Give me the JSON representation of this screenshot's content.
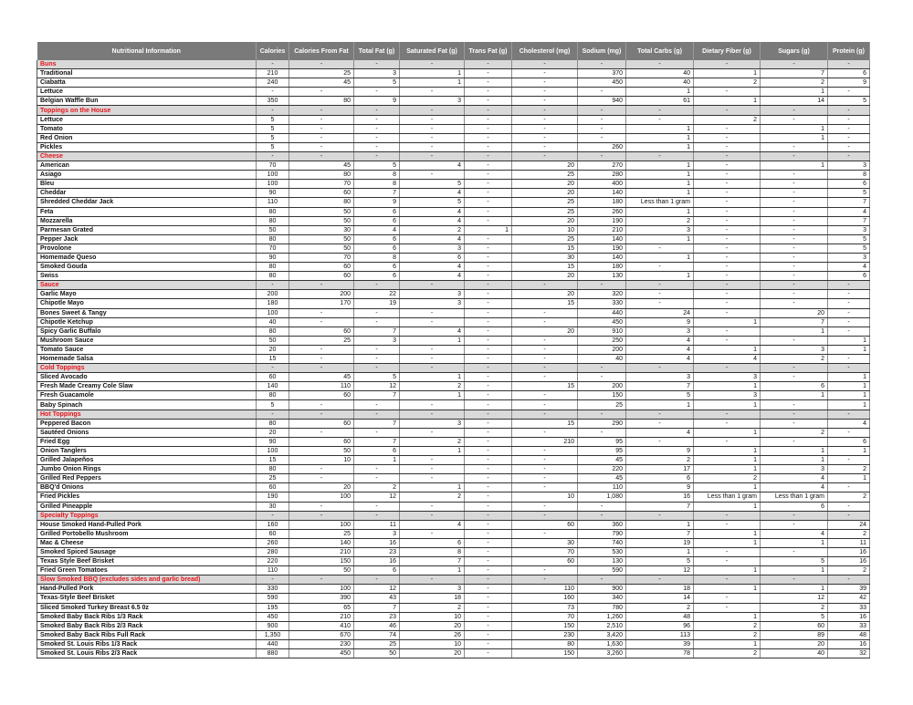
{
  "columns": [
    "Nutritional Information",
    "Calories",
    "Calories From Fat",
    "Total Fat (g)",
    "Saturated Fat (g)",
    "Trans Fat (g)",
    "Cholesterol (mg)",
    "Sodium (mg)",
    "Total Carbs (g)",
    "Dietary Fiber (g)",
    "Sugars (g)",
    "Protein (g)"
  ],
  "colors": {
    "header_bg": "#7a7a7a",
    "section_bg": "#d9d9d9",
    "section_text": "#e8141b"
  },
  "rows": [
    {
      "section": true,
      "cells": [
        "Buns",
        "-",
        "-",
        "-",
        "-",
        "-",
        "-",
        "-",
        "-",
        "-",
        "-",
        "-"
      ]
    },
    {
      "cells": [
        "Traditional",
        "210",
        "25",
        "3",
        "1",
        "-",
        "-",
        "370",
        "40",
        "1",
        "7",
        "6"
      ]
    },
    {
      "cells": [
        "Ciabatta",
        "240",
        "45",
        "5",
        "1",
        "-",
        "-",
        "450",
        "40",
        "2",
        "2",
        "9"
      ]
    },
    {
      "cells": [
        "Lettuce",
        "-",
        "-",
        "-",
        "-",
        "-",
        "-",
        "-",
        "1",
        "-",
        "1",
        "-"
      ]
    },
    {
      "cells": [
        "Belgian Waffle Bun",
        "350",
        "80",
        "9",
        "3",
        "-",
        "-",
        "940",
        "61",
        "1",
        "14",
        "5"
      ]
    },
    {
      "section": true,
      "cells": [
        "Toppings on the House",
        "-",
        "-",
        "-",
        "-",
        "-",
        "-",
        "-",
        "-",
        "-",
        "-",
        "-"
      ]
    },
    {
      "cells": [
        "Lettuce",
        "5",
        "-",
        "-",
        "-",
        "-",
        "-",
        "-",
        "-",
        "2",
        "-",
        "-"
      ]
    },
    {
      "cells": [
        "Tomato",
        "5",
        "-",
        "-",
        "-",
        "-",
        "-",
        "-",
        "1",
        "-",
        "1",
        "-"
      ]
    },
    {
      "cells": [
        "Red Onion",
        "5",
        "-",
        "-",
        "-",
        "-",
        "-",
        "-",
        "1",
        "-",
        "1",
        "-"
      ]
    },
    {
      "cells": [
        "Pickles",
        "5",
        "-",
        "-",
        "-",
        "-",
        "-",
        "260",
        "1",
        "-",
        "-",
        "-"
      ]
    },
    {
      "section": true,
      "cells": [
        "Cheese",
        "-",
        "-",
        "-",
        "-",
        "-",
        "-",
        "-",
        "-",
        "-",
        "-",
        "-"
      ]
    },
    {
      "cells": [
        "American",
        "70",
        "45",
        "5",
        "4",
        "-",
        "20",
        "270",
        "1",
        "-",
        "1",
        "3"
      ]
    },
    {
      "cells": [
        "Asiago",
        "100",
        "80",
        "8",
        "-",
        "-",
        "25",
        "280",
        "1",
        "-",
        "-",
        "8"
      ]
    },
    {
      "cells": [
        "Bleu",
        "100",
        "70",
        "8",
        "5",
        "-",
        "20",
        "400",
        "1",
        "-",
        "-",
        "6"
      ]
    },
    {
      "cells": [
        "Cheddar",
        "90",
        "60",
        "7",
        "4",
        "-",
        "20",
        "140",
        "1",
        "-",
        "-",
        "5"
      ]
    },
    {
      "cells": [
        "Shredded Cheddar Jack",
        "110",
        "80",
        "9",
        "5",
        "-",
        "25",
        "180",
        "Less than 1 gram",
        "-",
        "-",
        "7"
      ]
    },
    {
      "cells": [
        "Feta",
        "80",
        "50",
        "6",
        "4",
        "-",
        "25",
        "260",
        "1",
        "-",
        "-",
        "4"
      ]
    },
    {
      "cells": [
        "Mozzarella",
        "80",
        "50",
        "6",
        "4",
        "-",
        "20",
        "190",
        "2",
        "-",
        "-",
        "7"
      ]
    },
    {
      "cells": [
        "Parmesan Grated",
        "50",
        "30",
        "4",
        "2",
        "1",
        "10",
        "210",
        "3",
        "-",
        "-",
        "3"
      ]
    },
    {
      "cells": [
        "Pepper Jack",
        "80",
        "50",
        "6",
        "4",
        "-",
        "25",
        "140",
        "1",
        "-",
        "-",
        "5"
      ]
    },
    {
      "cells": [
        "Provolone",
        "70",
        "50",
        "6",
        "3",
        "-",
        "15",
        "190",
        "-",
        "-",
        "-",
        "5"
      ]
    },
    {
      "cells": [
        "Homemade Queso",
        "90",
        "70",
        "8",
        "6",
        "-",
        "30",
        "140",
        "1",
        "-",
        "-",
        "3"
      ]
    },
    {
      "cells": [
        "Smoked Gouda",
        "80",
        "60",
        "6",
        "4",
        "-",
        "15",
        "180",
        "-",
        "-",
        "-",
        "4"
      ]
    },
    {
      "cells": [
        "Swiss",
        "80",
        "60",
        "6",
        "4",
        "-",
        "20",
        "130",
        "1",
        "-",
        "-",
        "6"
      ]
    },
    {
      "section": true,
      "cells": [
        "Sauce",
        "-",
        "-",
        "-",
        "-",
        "-",
        "-",
        "-",
        "-",
        "-",
        "-",
        "-"
      ]
    },
    {
      "cells": [
        "Garlic Mayo",
        "200",
        "200",
        "22",
        "3",
        "-",
        "20",
        "320",
        "-",
        "-",
        "-",
        "-"
      ]
    },
    {
      "cells": [
        "Chipotle Mayo",
        "180",
        "170",
        "19",
        "3",
        "-",
        "15",
        "330",
        "-",
        "-",
        "-",
        "-"
      ]
    },
    {
      "cells": [
        "Bones Sweet & Tangy",
        "100",
        "-",
        "-",
        "-",
        "-",
        "-",
        "440",
        "24",
        "-",
        "20",
        "-"
      ]
    },
    {
      "cells": [
        "Chipotle Ketchup",
        "40",
        "-",
        "-",
        "-",
        "-",
        "-",
        "450",
        "9",
        "1",
        "7",
        "-"
      ]
    },
    {
      "cells": [
        "Spicy Garlic Buffalo",
        "80",
        "60",
        "7",
        "4",
        "-",
        "20",
        "910",
        "3",
        "-",
        "1",
        "-"
      ]
    },
    {
      "cells": [
        "Mushroom Sauce",
        "50",
        "25",
        "3",
        "1",
        "-",
        "-",
        "250",
        "4",
        "-",
        "-",
        "1"
      ]
    },
    {
      "cells": [
        "Tomato Sauce",
        "20",
        "-",
        "-",
        "-",
        "-",
        "-",
        "200",
        "4",
        "1",
        "3",
        "1"
      ]
    },
    {
      "cells": [
        "Homemade Salsa",
        "15",
        "-",
        "-",
        "-",
        "-",
        "-",
        "40",
        "4",
        "4",
        "2",
        "-"
      ]
    },
    {
      "section": true,
      "cells": [
        "Cold Toppings",
        "-",
        "-",
        "-",
        "-",
        "-",
        "-",
        "-",
        "-",
        "-",
        "-",
        "-"
      ]
    },
    {
      "cells": [
        "Sliced Avocado",
        "60",
        "45",
        "5",
        "1",
        "-",
        "-",
        "-",
        "3",
        "3",
        "-",
        "1"
      ]
    },
    {
      "cells": [
        "Fresh Made Creamy Cole Slaw",
        "140",
        "110",
        "12",
        "2",
        "-",
        "15",
        "200",
        "7",
        "1",
        "6",
        "1"
      ]
    },
    {
      "cells": [
        "Fresh Guacamole",
        "80",
        "60",
        "7",
        "1",
        "-",
        "-",
        "150",
        "5",
        "3",
        "1",
        "1"
      ]
    },
    {
      "cells": [
        "Baby Spinach",
        "5",
        "-",
        "-",
        "-",
        "-",
        "-",
        "25",
        "1",
        "1",
        "-",
        "1"
      ]
    },
    {
      "section": true,
      "cells": [
        "Hot Toppings",
        "-",
        "-",
        "-",
        "-",
        "-",
        "-",
        "-",
        "-",
        "-",
        "-",
        "-"
      ]
    },
    {
      "cells": [
        "Peppered Bacon",
        "80",
        "60",
        "7",
        "3",
        "-",
        "15",
        "290",
        "-",
        "-",
        "-",
        "4"
      ]
    },
    {
      "cells": [
        "Sautéed Onions",
        "20",
        "-",
        "-",
        "-",
        "-",
        "-",
        "-",
        "4",
        "1",
        "2",
        "-"
      ]
    },
    {
      "cells": [
        "Fried Egg",
        "90",
        "60",
        "7",
        "2",
        "-",
        "210",
        "95",
        "-",
        "-",
        "-",
        "6"
      ]
    },
    {
      "cells": [
        "Onion Tanglers",
        "100",
        "50",
        "6",
        "1",
        "-",
        "-",
        "95",
        "9",
        "1",
        "1",
        "1"
      ]
    },
    {
      "cells": [
        "Grilled Jalapeños",
        "15",
        "10",
        "1",
        "-",
        "-",
        "-",
        "45",
        "2",
        "1",
        "1",
        "-"
      ]
    },
    {
      "cells": [
        "Jumbo Onion Rings",
        "80",
        "-",
        "-",
        "-",
        "-",
        "-",
        "220",
        "17",
        "1",
        "3",
        "2"
      ]
    },
    {
      "cells": [
        "Grilled Red Peppers",
        "25",
        "-",
        "-",
        "-",
        "-",
        "-",
        "45",
        "6",
        "2",
        "4",
        "1"
      ]
    },
    {
      "cells": [
        "BBQ'd Onions",
        "60",
        "20",
        "2",
        "1",
        "-",
        "-",
        "110",
        "9",
        "1",
        "4",
        "-"
      ]
    },
    {
      "cells": [
        "Fried Pickles",
        "190",
        "100",
        "12",
        "2",
        "-",
        "10",
        "1,080",
        "16",
        "Less than 1 gram",
        "Less than 1 gram",
        "2"
      ]
    },
    {
      "cells": [
        "Grilled Pineapple",
        "30",
        "-",
        "-",
        "-",
        "-",
        "-",
        "-",
        "7",
        "1",
        "6",
        "-"
      ]
    },
    {
      "section": true,
      "cells": [
        "Specialty Toppings",
        "-",
        "-",
        "-",
        "-",
        "-",
        "-",
        "-",
        "-",
        "-",
        "-",
        "-"
      ]
    },
    {
      "cells": [
        "House Smoked Hand-Pulled Pork",
        "160",
        "100",
        "11",
        "4",
        "-",
        "60",
        "360",
        "1",
        "-",
        "-",
        "24"
      ]
    },
    {
      "cells": [
        "Grilled Portobello Mushroom",
        "60",
        "25",
        "3",
        "-",
        "-",
        "-",
        "790",
        "7",
        "1",
        "4",
        "2"
      ]
    },
    {
      "cells": [
        "Mac & Cheese",
        "260",
        "140",
        "16",
        "6",
        "-",
        "30",
        "740",
        "19",
        "1",
        "1",
        "11"
      ]
    },
    {
      "cells": [
        "Smoked Spiced Sausage",
        "280",
        "210",
        "23",
        "8",
        "-",
        "70",
        "530",
        "1",
        "-",
        "-",
        "16"
      ]
    },
    {
      "cells": [
        "Texas Style Beef Brisket",
        "220",
        "150",
        "16",
        "7",
        "-",
        "60",
        "130",
        "5",
        "-",
        "5",
        "16"
      ]
    },
    {
      "cells": [
        "Fried Green Tomatoes",
        "110",
        "50",
        "6",
        "1",
        "-",
        "-",
        "590",
        "12",
        "1",
        "1",
        "2"
      ]
    },
    {
      "section": true,
      "cells": [
        "Slow Smoked BBQ (excludes sides and garlic bread)",
        "-",
        "-",
        "-",
        "-",
        "-",
        "-",
        "-",
        "-",
        "-",
        "-",
        "-"
      ]
    },
    {
      "cells": [
        "Hand-Pulled Pork",
        "330",
        "100",
        "12",
        "3",
        "-",
        "110",
        "900",
        "18",
        "1",
        "1",
        "39"
      ]
    },
    {
      "cells": [
        "Texas-Style Beef Brisket",
        "590",
        "390",
        "43",
        "18",
        "-",
        "160",
        "340",
        "14",
        "-",
        "12",
        "42"
      ]
    },
    {
      "cells": [
        "Sliced Smoked Turkey Breast 6.5 0z",
        "195",
        "65",
        "7",
        "2",
        "-",
        "73",
        "780",
        "2",
        "-",
        "2",
        "33"
      ]
    },
    {
      "cells": [
        "Smoked Baby Back Ribs 1/3 Rack",
        "450",
        "210",
        "23",
        "10",
        "-",
        "70",
        "1,260",
        "48",
        "1",
        "5",
        "16"
      ]
    },
    {
      "cells": [
        "Smoked Baby Back Ribs 2/3 Rack",
        "900",
        "410",
        "46",
        "20",
        "-",
        "150",
        "2,510",
        "96",
        "2",
        "60",
        "33"
      ]
    },
    {
      "cells": [
        "Smoked Baby Back Ribs Full Rack",
        "1,350",
        "670",
        "74",
        "26",
        "-",
        "230",
        "3,420",
        "113",
        "2",
        "89",
        "48"
      ]
    },
    {
      "cells": [
        "Smoked St. Louis Ribs 1/3 Rack",
        "440",
        "230",
        "25",
        "10",
        "-",
        "80",
        "1,630",
        "39",
        "1",
        "20",
        "16"
      ]
    },
    {
      "cells": [
        "Smoked St. Louis Ribs 2/3 Rack",
        "880",
        "450",
        "50",
        "20",
        "-",
        "150",
        "3,260",
        "78",
        "2",
        "40",
        "32"
      ]
    }
  ]
}
